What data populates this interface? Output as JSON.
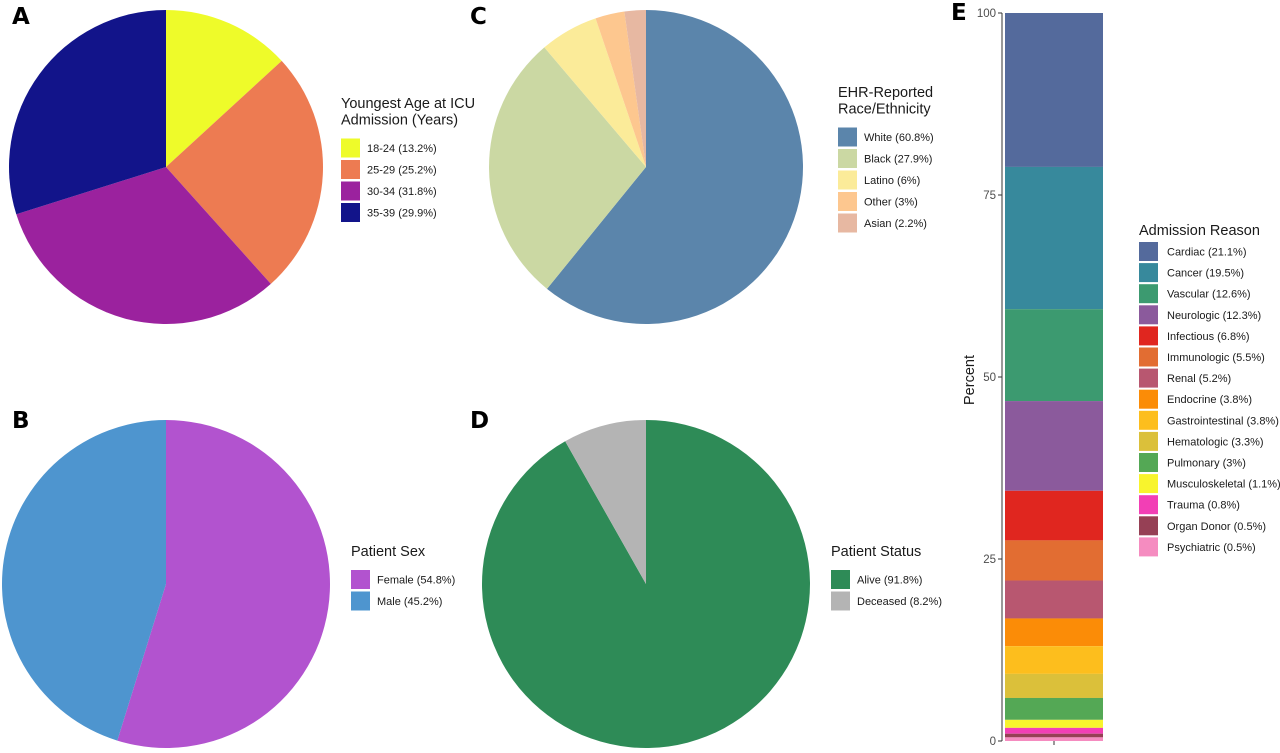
{
  "chart_data": [
    {
      "panel": "A",
      "type": "pie",
      "title": "Youngest Age at ICU\nAdmission (Years)",
      "categories": [
        "18-24 (13.2%)",
        "25-29 (25.2%)",
        "30-34 (31.8%)",
        "35-39 (29.9%)"
      ],
      "values": [
        13.2,
        25.2,
        31.8,
        29.9
      ],
      "colors": [
        "#eefb2a",
        "#ed7b52",
        "#9b229e",
        "#12148a"
      ],
      "legend_position": "right"
    },
    {
      "panel": "B",
      "type": "pie",
      "title": "Patient Sex",
      "categories": [
        "Female (54.8%)",
        "Male (45.2%)"
      ],
      "values": [
        54.8,
        45.2
      ],
      "colors": [
        "#b253cf",
        "#4e95cf"
      ],
      "legend_position": "right"
    },
    {
      "panel": "C",
      "type": "pie",
      "title": "EHR-Reported\nRace/Ethnicity",
      "categories": [
        "White (60.8%)",
        "Black (27.9%)",
        "Latino (6%)",
        "Other (3%)",
        "Asian (2.2%)"
      ],
      "values": [
        60.8,
        27.9,
        6,
        3,
        2.2
      ],
      "colors": [
        "#5b85ab",
        "#cbd8a3",
        "#fbeb99",
        "#fdc78f",
        "#e7b8a2"
      ],
      "legend_position": "right"
    },
    {
      "panel": "D",
      "type": "pie",
      "title": "Patient Status",
      "categories": [
        "Alive (91.8%)",
        "Deceased (8.2%)"
      ],
      "values": [
        91.8,
        8.2
      ],
      "colors": [
        "#2e8b57",
        "#b4b4b4"
      ],
      "legend_position": "right"
    },
    {
      "panel": "E",
      "type": "bar",
      "stacked": true,
      "title": "Admission Reason",
      "ylabel": "Percent",
      "xlabel": "",
      "ylim": [
        0,
        100
      ],
      "yticks": [
        "0",
        "25",
        "50",
        "75",
        "100"
      ],
      "categories": [
        "Cardiac (21.1%)",
        "Cancer (19.5%)",
        "Vascular (12.6%)",
        "Neurologic (12.3%)",
        "Infectious (6.8%)",
        "Immunologic (5.5%)",
        "Renal (5.2%)",
        "Endocrine (3.8%)",
        "Gastrointestinal (3.8%)",
        "Hematologic (3.3%)",
        "Pulmonary (3%)",
        "Musculoskeletal (1.1%)",
        "Trauma (0.8%)",
        "Organ Donor (0.5%)",
        "Psychiatric (0.5%)"
      ],
      "values": [
        21.1,
        19.5,
        12.6,
        12.3,
        6.8,
        5.5,
        5.2,
        3.8,
        3.8,
        3.3,
        3,
        1.1,
        0.8,
        0.5,
        0.5
      ],
      "colors": [
        "#546a9c",
        "#37899c",
        "#3c9a70",
        "#8b5a9c",
        "#e0261f",
        "#e26d32",
        "#b85770",
        "#fb8c07",
        "#fdbe1d",
        "#dbc03a",
        "#54a855",
        "#f8f42d",
        "#f23fb5",
        "#964055",
        "#f58cc0"
      ],
      "legend_position": "right"
    }
  ]
}
